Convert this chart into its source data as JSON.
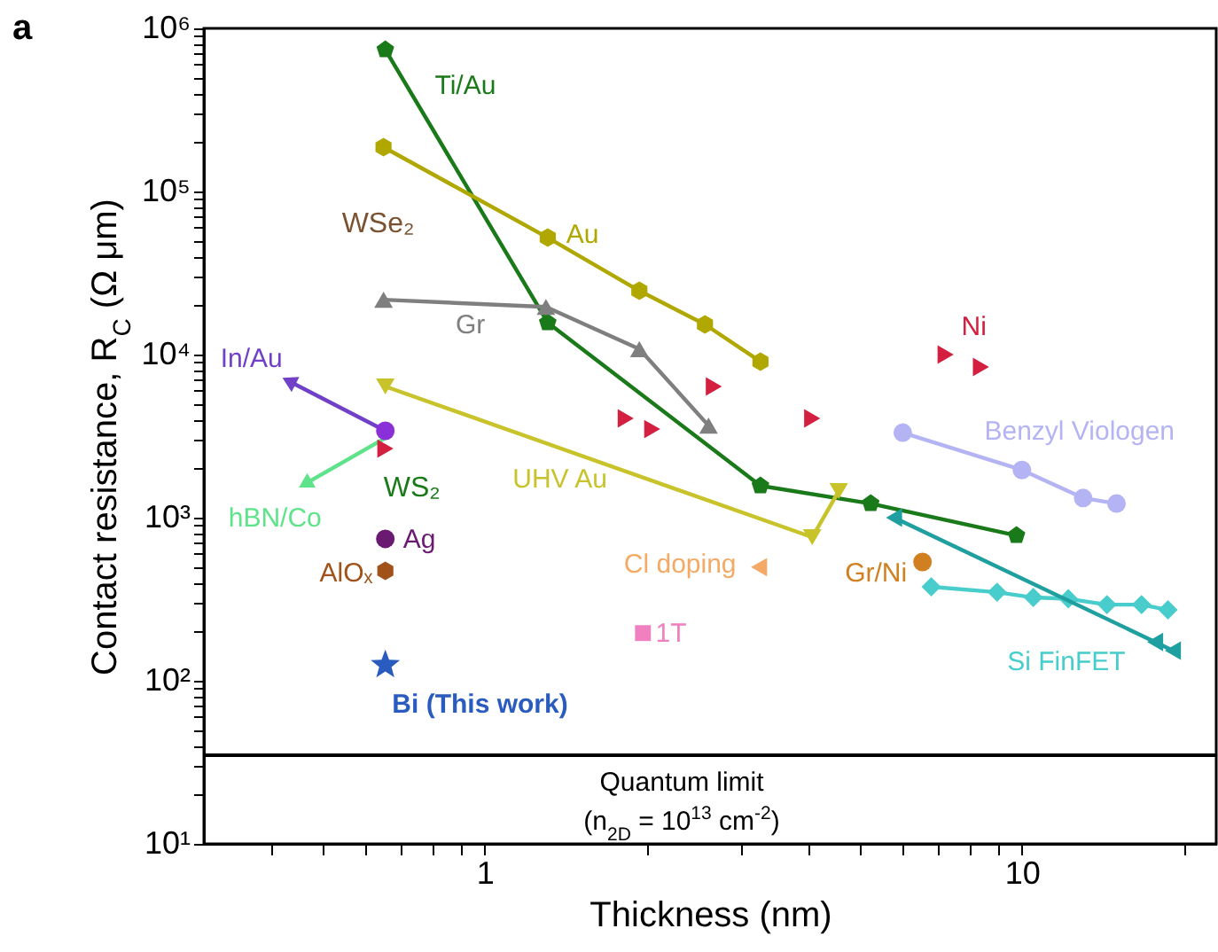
{
  "chart_data": {
    "type": "line",
    "xlabel": "Thickness (nm)",
    "ylabel": "Contact resistance, R$_{C}$ (Ω μm)",
    "log": "xy",
    "xlim": [
      0.3,
      23
    ],
    "xticks": [
      {
        "value": 0.4,
        "label": null
      },
      {
        "value": 0.5,
        "label": null
      },
      {
        "value": 0.6,
        "label": null
      },
      {
        "value": 0.7,
        "label": null
      },
      {
        "value": 0.8,
        "label": null
      },
      {
        "value": 0.9,
        "label": null
      },
      1,
      {
        "value": 2,
        "label": null
      },
      {
        "value": 3,
        "label": null
      },
      {
        "value": 4,
        "label": null
      },
      {
        "value": 5,
        "label": null
      },
      {
        "value": 6,
        "label": null
      },
      {
        "value": 7,
        "label": null
      },
      {
        "value": 8,
        "label": null
      },
      {
        "value": 9,
        "label": null
      },
      10,
      {
        "value": 20,
        "label": null
      }
    ],
    "ylim": [
      10,
      1000000
    ],
    "yticks": [
      {
        "value": 10,
        "label": "10¹"
      },
      {
        "value": 20,
        "label": null
      },
      {
        "value": 30,
        "label": null
      },
      {
        "value": 40,
        "label": null
      },
      {
        "value": 50,
        "label": null
      },
      {
        "value": 60,
        "label": null
      },
      {
        "value": 70,
        "label": null
      },
      {
        "value": 80,
        "label": null
      },
      {
        "value": 90,
        "label": null
      },
      {
        "value": 100,
        "label": "10²"
      },
      {
        "value": 200,
        "label": null
      },
      {
        "value": 300,
        "label": null
      },
      {
        "value": 400,
        "label": null
      },
      {
        "value": 500,
        "label": null
      },
      {
        "value": 600,
        "label": null
      },
      {
        "value": 700,
        "label": null
      },
      {
        "value": 800,
        "label": null
      },
      {
        "value": 900,
        "label": null
      },
      {
        "value": 1000,
        "label": "10³"
      },
      {
        "value": 2000,
        "label": null
      },
      {
        "value": 3000,
        "label": null
      },
      {
        "value": 4000,
        "label": null
      },
      {
        "value": 5000,
        "label": null
      },
      {
        "value": 6000,
        "label": null
      },
      {
        "value": 7000,
        "label": null
      },
      {
        "value": 8000,
        "label": null
      },
      {
        "value": 9000,
        "label": null
      },
      {
        "value": 10000,
        "label": "10⁴"
      },
      {
        "value": 20000,
        "label": null
      },
      {
        "value": 30000,
        "label": null
      },
      {
        "value": 40000,
        "label": null
      },
      {
        "value": 50000,
        "label": null
      },
      {
        "value": 60000,
        "label": null
      },
      {
        "value": 70000,
        "label": null
      },
      {
        "value": 80000,
        "label": null
      },
      {
        "value": 90000,
        "label": null
      },
      {
        "value": 100000,
        "label": "10⁵"
      },
      {
        "value": 200000,
        "label": null
      },
      {
        "value": 300000,
        "label": null
      },
      {
        "value": 400000,
        "label": null
      },
      {
        "value": 500000,
        "label": null
      },
      {
        "value": 600000,
        "label": null
      },
      {
        "value": 700000,
        "label": null
      },
      {
        "value": 800000,
        "label": null
      },
      {
        "value": 900000,
        "label": null
      },
      {
        "value": 1000000,
        "label": "10⁶"
      }
    ],
    "series": [
      {
        "name": "Ti/Au",
        "marker": "circle",
        "color": "#1a7a1a",
        "x": [
          0.653,
          1.31,
          3.26,
          5.23,
          9.77
        ],
        "values": [
          740000,
          15700,
          1570,
          1220,
          778
        ]
      },
      {
        "name": "Au",
        "marker": "circle",
        "color": "#b0a800",
        "x": [
          0.648,
          1.31,
          1.94,
          2.57,
          3.26
        ],
        "values": [
          187000,
          52100,
          24600,
          15300,
          9060
        ]
      },
      {
        "name": "Gr",
        "marker": "triangle",
        "color": "#7f7f7f",
        "x": [
          0.648,
          1.3,
          1.94,
          2.61
        ],
        "values": [
          21700,
          19600,
          10800,
          3670
        ]
      },
      {
        "name": "UHV Au",
        "marker": "triangle",
        "color": "#c8c32a",
        "x": [
          0.653,
          4.07,
          4.56
        ],
        "values": [
          6370,
          759,
          1455
        ]
      },
      {
        "name": "In/Au",
        "marker": "triangle",
        "color": "#7040c8",
        "x": [
          0.653,
          0.432
        ],
        "values": [
          3410,
          6870
        ]
      },
      {
        "name": "hBN/Co",
        "marker": "triangle",
        "color": "#5fe38a",
        "x": [
          0.653,
          0.463
        ],
        "values": [
          3080,
          1610
        ]
      },
      {
        "name": "Ni",
        "type": "scatter",
        "marker": "triangle",
        "color": "#d42040",
        "x": [
          0.653,
          1.83,
          2.05,
          2.67,
          4.07,
          7.21,
          8.39
        ],
        "values": [
          2650,
          4060,
          3490,
          6370,
          4060,
          10000,
          8400
        ]
      },
      {
        "type": "scatter",
        "marker": "circle",
        "color": "#8a30d8",
        "x": [
          0.653
        ],
        "values": [
          3410
        ]
      },
      {
        "name": "Ag",
        "type": "scatter",
        "marker": "circle",
        "color": "#6a1a70",
        "x": [
          0.653
        ],
        "values": [
          741
        ]
      },
      {
        "name": "AlOₓ",
        "type": "scatter",
        "marker": "circle",
        "color": "#a0521a",
        "x": [
          0.653
        ],
        "values": [
          472
        ]
      },
      {
        "name": "Bi (This work)",
        "type": "scatter",
        "marker": "star",
        "color": "#2a5cc0",
        "x": [
          0.653
        ],
        "values": [
          125
        ]
      },
      {
        "name": "1T",
        "type": "scatter",
        "marker": "square",
        "color": "#f080c0",
        "x": [
          1.97
        ],
        "values": [
          196
        ]
      },
      {
        "name": "Cl doping",
        "type": "scatter",
        "marker": "triangle",
        "color": "#f4aa66",
        "x": [
          3.24
        ],
        "values": [
          497
        ]
      },
      {
        "name": "Gr/Ni",
        "type": "scatter",
        "marker": "circle",
        "color": "#d08020",
        "x": [
          6.53
        ],
        "values": [
          535
        ]
      },
      {
        "name": "Benzyl Viologen",
        "marker": "circle",
        "color": "#b4b4f4",
        "x": [
          6.0,
          10.0,
          13.0,
          15.0
        ],
        "values": [
          3320,
          1960,
          1320,
          1220
        ]
      },
      {
        "name": "Si FinFET",
        "marker": "diamond",
        "color": "#48cccc",
        "x": [
          6.78,
          8.99,
          10.5,
          12.2,
          14.4,
          16.7,
          18.7
        ],
        "values": [
          377,
          349,
          324,
          318,
          293,
          293,
          272
        ]
      },
      {
        "marker": "triangle",
        "color": "#1f9f9f",
        "x": [
          5.78,
          17.7,
          19.1
        ],
        "values": [
          1000,
          173,
          153
        ]
      }
    ],
    "ref_lines": [
      {
        "axis": "y",
        "value": 35,
        "label": "Quantum limit",
        "color": "#000000"
      }
    ],
    "annotations": [
      "a",
      "WSe₂",
      "WS₂",
      "(n$_{2D}$ = 10$^{13}$ cm$^{-2}$)"
    ]
  }
}
